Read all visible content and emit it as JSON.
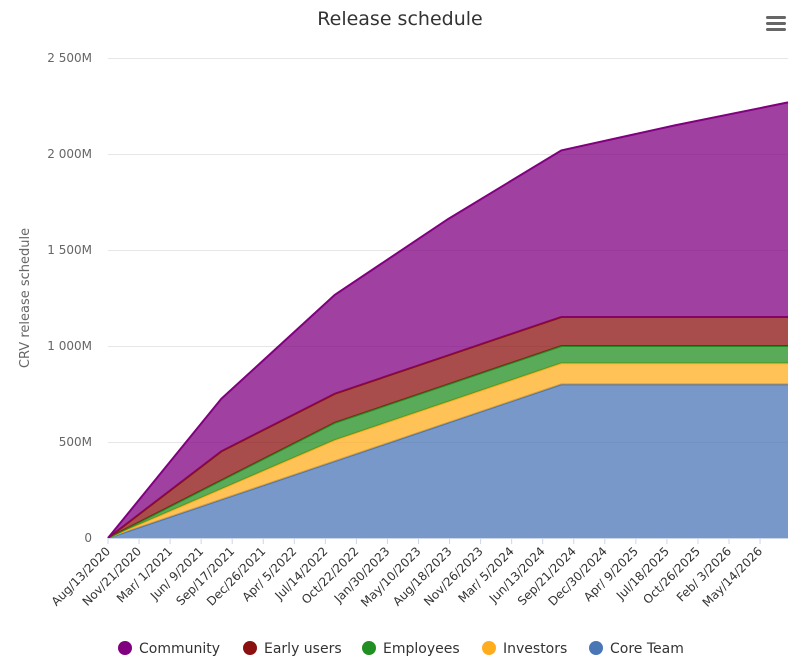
{
  "chart_data": {
    "type": "area",
    "stacked": true,
    "title": "Release schedule",
    "ylabel": "CRV release schedule",
    "xlabel": "",
    "ylim": [
      0,
      2500
    ],
    "y_ticks": [
      0,
      500,
      1000,
      1500,
      2000,
      2500
    ],
    "y_tick_labels": [
      "0",
      "500M",
      "1 000M",
      "1 500M",
      "2 000M",
      "2 500M"
    ],
    "x_tick_labels": [
      "Aug/13/2020",
      "Nov/21/2020",
      "Mar/ 1/2021",
      "Jun/ 9/2021",
      "Sep/17/2021",
      "Dec/26/2021",
      "Apr/ 5/2022",
      "Jul/14/2022",
      "Oct/22/2022",
      "Jan/30/2023",
      "May/10/2023",
      "Aug/18/2023",
      "Nov/26/2023",
      "Mar/ 5/2024",
      "Jun/13/2024",
      "Sep/21/2024",
      "Dec/30/2024",
      "Apr/ 9/2025",
      "Jul/18/2025",
      "Oct/26/2025",
      "Feb/ 3/2026",
      "May/14/2026"
    ],
    "x": [
      "Aug/13/2020",
      "Aug/13/2021",
      "Aug/13/2022",
      "Aug/13/2023",
      "Aug/13/2024",
      "Aug/13/2025",
      "Aug/13/2026"
    ],
    "series": [
      {
        "name": "Core Team",
        "color": "#4a76b5",
        "values": [
          0,
          200,
          400,
          600,
          800,
          800,
          800
        ]
      },
      {
        "name": "Investors",
        "color": "#ffad1f",
        "values": [
          0,
          55,
          110,
          110,
          110,
          110,
          110
        ]
      },
      {
        "name": "Employees",
        "color": "#218f21",
        "values": [
          0,
          45,
          90,
          90,
          90,
          90,
          90
        ]
      },
      {
        "name": "Early users",
        "color": "#8b1010",
        "values": [
          0,
          151,
          151,
          151,
          151,
          151,
          151
        ]
      },
      {
        "name": "Community",
        "color": "#800080",
        "values": [
          0,
          274,
          515,
          710,
          868,
          998,
          1118
        ]
      }
    ],
    "legend_order": [
      "Community",
      "Early users",
      "Employees",
      "Investors",
      "Core Team"
    ],
    "legend_position": "bottom",
    "grid": true
  },
  "menu_icon": "hamburger-menu-icon"
}
